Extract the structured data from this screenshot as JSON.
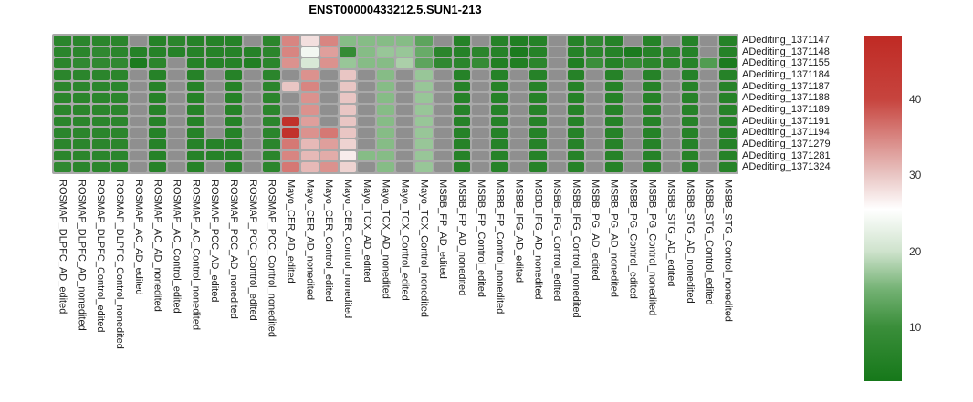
{
  "title": "ENST00000433212.5.SUN1-213",
  "chart_data": {
    "type": "heatmap",
    "title": "ENST00000433212.5.SUN1-213",
    "legend_position": "right",
    "rows": [
      "ADediting_1371147",
      "ADediting_1371148",
      "ADediting_1371155",
      "ADediting_1371184",
      "ADediting_1371187",
      "ADediting_1371188",
      "ADediting_1371189",
      "ADediting_1371191",
      "ADediting_1371194",
      "ADediting_1371279",
      "ADediting_1371281",
      "ADediting_1371324"
    ],
    "columns": [
      "ROSMAP_DLPFC_AD_edited",
      "ROSMAP_DLPFC_AD_nonedited",
      "ROSMAP_DLPFC_Control_edited",
      "ROSMAP_DLPFC_Control_nonedited",
      "ROSMAP_AC_AD_edited",
      "ROSMAP_AC_AD_nonedited",
      "ROSMAP_AC_Control_edited",
      "ROSMAP_AC_Control_nonedited",
      "ROSMAP_PCC_AD_edited",
      "ROSMAP_PCC_AD_nonedited",
      "ROSMAP_PCC_Control_edited",
      "ROSMAP_PCC_Control_nonedited",
      "Mayo_CER_AD_edited",
      "Mayo_CER_AD_nonedited",
      "Mayo_CER_Control_edited",
      "Mayo_CER_Control_nonedited",
      "Mayo_TCX_AD_edited",
      "Mayo_TCX_AD_nonedited",
      "Mayo_TCX_Control_edited",
      "Mayo_TCX_Control_nonedited",
      "MSBB_FP_AD_edited",
      "MSBB_FP_AD_nonedited",
      "MSBB_FP_Control_edited",
      "MSBB_FP_Control_nonedited",
      "MSBB_IFG_AD_edited",
      "MSBB_IFG_AD_nonedited",
      "MSBB_IFG_Control_edited",
      "MSBB_IFG_Control_nonedited",
      "MSBB_PG_AD_edited",
      "MSBB_PG_AD_nonedited",
      "MSBB_PG_Control_edited",
      "MSBB_PG_Control_nonedited",
      "MSBB_STG_AD_edited",
      "MSBB_STG_AD_nonedited",
      "MSBB_STG_Control_edited",
      "MSBB_STG_Control_nonedited"
    ],
    "values": [
      [
        7,
        7,
        7,
        7,
        null,
        6,
        7,
        6,
        6,
        6,
        null,
        7,
        35,
        28,
        35,
        16,
        16,
        16,
        16,
        13,
        null,
        6,
        null,
        6,
        5,
        6,
        null,
        6,
        8,
        6,
        null,
        6,
        null,
        6,
        null,
        6
      ],
      [
        7,
        7,
        8,
        7,
        6,
        6,
        6,
        6,
        6,
        6,
        6,
        7,
        35,
        24,
        33,
        9,
        16,
        17,
        17,
        14,
        7,
        6,
        7,
        6,
        4,
        6,
        null,
        6,
        7,
        6,
        4,
        6,
        7,
        6,
        null,
        6
      ],
      [
        7,
        8,
        8,
        8,
        4,
        7,
        null,
        6,
        6,
        6,
        5,
        7,
        34,
        21,
        34,
        17,
        16,
        16,
        18,
        13,
        8,
        7,
        9,
        5,
        5,
        7,
        null,
        5,
        10,
        6,
        9,
        7,
        7,
        6,
        12,
        4
      ],
      [
        7,
        7,
        7,
        7,
        null,
        6,
        null,
        6,
        null,
        6,
        null,
        7,
        null,
        34,
        null,
        30,
        null,
        16,
        null,
        17,
        null,
        6,
        null,
        6,
        null,
        6,
        null,
        6,
        null,
        6,
        null,
        6,
        null,
        6,
        null,
        6
      ],
      [
        7,
        7,
        7,
        7,
        null,
        6,
        null,
        6,
        null,
        6,
        null,
        7,
        30,
        35,
        null,
        30,
        null,
        16,
        null,
        17,
        null,
        6,
        null,
        6,
        null,
        6,
        null,
        6,
        null,
        6,
        null,
        6,
        null,
        6,
        null,
        6
      ],
      [
        7,
        7,
        7,
        7,
        null,
        6,
        null,
        6,
        null,
        6,
        null,
        7,
        null,
        34,
        null,
        30,
        null,
        16,
        null,
        17,
        null,
        6,
        null,
        6,
        null,
        6,
        null,
        6,
        null,
        6,
        null,
        6,
        null,
        6,
        null,
        6
      ],
      [
        7,
        7,
        7,
        7,
        null,
        6,
        null,
        6,
        null,
        6,
        null,
        7,
        null,
        34,
        null,
        30,
        null,
        16,
        null,
        17,
        null,
        6,
        null,
        6,
        null,
        6,
        null,
        6,
        null,
        6,
        null,
        6,
        null,
        6,
        null,
        6
      ],
      [
        7,
        7,
        7,
        7,
        null,
        6,
        null,
        6,
        null,
        6,
        null,
        7,
        46,
        33,
        null,
        30,
        null,
        16,
        null,
        17,
        null,
        6,
        null,
        6,
        null,
        6,
        null,
        6,
        null,
        6,
        null,
        6,
        null,
        6,
        null,
        6
      ],
      [
        7,
        7,
        7,
        7,
        null,
        6,
        null,
        6,
        null,
        6,
        null,
        7,
        46,
        34,
        36,
        30,
        null,
        16,
        null,
        17,
        null,
        6,
        null,
        6,
        null,
        6,
        null,
        6,
        null,
        6,
        null,
        6,
        null,
        6,
        null,
        6
      ],
      [
        7,
        7,
        7,
        7,
        null,
        6,
        null,
        6,
        6,
        6,
        null,
        7,
        36,
        31,
        33,
        29,
        null,
        16,
        null,
        17,
        null,
        6,
        null,
        6,
        null,
        6,
        null,
        6,
        null,
        6,
        null,
        6,
        null,
        6,
        null,
        6
      ],
      [
        7,
        7,
        7,
        7,
        null,
        6,
        null,
        6,
        6,
        6,
        null,
        7,
        35,
        31,
        32,
        27,
        16,
        16,
        null,
        17,
        null,
        6,
        null,
        6,
        null,
        6,
        null,
        6,
        null,
        6,
        null,
        6,
        null,
        6,
        null,
        6
      ],
      [
        8,
        7,
        7,
        7,
        null,
        6,
        null,
        6,
        null,
        6,
        null,
        7,
        36,
        31,
        34,
        29,
        null,
        16,
        null,
        17,
        null,
        6,
        null,
        6,
        null,
        6,
        null,
        6,
        null,
        6,
        null,
        6,
        null,
        6,
        null,
        6
      ]
    ],
    "colorbar": {
      "ticks": [
        40,
        30,
        20,
        10
      ],
      "vmin": 2.9,
      "vmax": 48.4,
      "color_stops": [
        [
          2.9,
          "#16781a"
        ],
        [
          10,
          "#3a8e3a"
        ],
        [
          15,
          "#74b274"
        ],
        [
          20,
          "#cfe3cd"
        ],
        [
          25.5,
          "#ffffff"
        ],
        [
          30,
          "#e9c6c4"
        ],
        [
          40,
          "#c7443e"
        ],
        [
          48.4,
          "#bf2a24"
        ]
      ]
    },
    "na_color": "#8f8f8f",
    "grid_background": "#a9a9a9"
  }
}
